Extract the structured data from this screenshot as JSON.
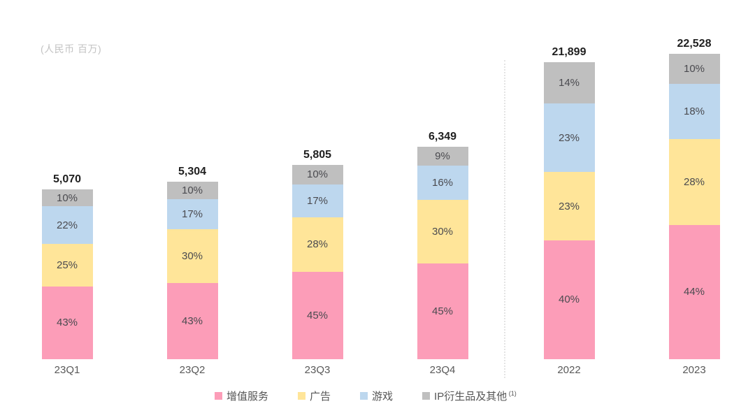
{
  "chart_data": {
    "type": "bar",
    "stacked": true,
    "unit_label": "(人民币 百万)",
    "value_suffix": "%",
    "legend_position": "bottom",
    "categories": [
      "23Q1",
      "23Q2",
      "23Q3",
      "23Q4",
      "2022",
      "2023"
    ],
    "category_groups": [
      "quarterly",
      "quarterly",
      "quarterly",
      "quarterly",
      "annual",
      "annual"
    ],
    "totals": [
      5070,
      5304,
      5805,
      6349,
      21899,
      22528
    ],
    "totals_display": [
      "5,070",
      "5,304",
      "5,805",
      "6,349",
      "21,899",
      "22,528"
    ],
    "series": [
      {
        "name": "增值服务",
        "color": "#FC9DB8",
        "values_pct": [
          43,
          43,
          45,
          45,
          40,
          44
        ]
      },
      {
        "name": "广告",
        "color": "#FFE599",
        "values_pct": [
          25,
          30,
          28,
          30,
          23,
          28
        ]
      },
      {
        "name": "游戏",
        "color": "#BDD7EE",
        "values_pct": [
          22,
          17,
          17,
          16,
          23,
          18
        ]
      },
      {
        "name": "IP衍生品及其他",
        "footnote_marker": "(1)",
        "color": "#BFBFBF",
        "values_pct": [
          10,
          10,
          10,
          9,
          14,
          10
        ]
      }
    ],
    "separator_note": "dashed divider between quarterly (23Q1-23Q4) and annual (2022-2023) bars"
  }
}
